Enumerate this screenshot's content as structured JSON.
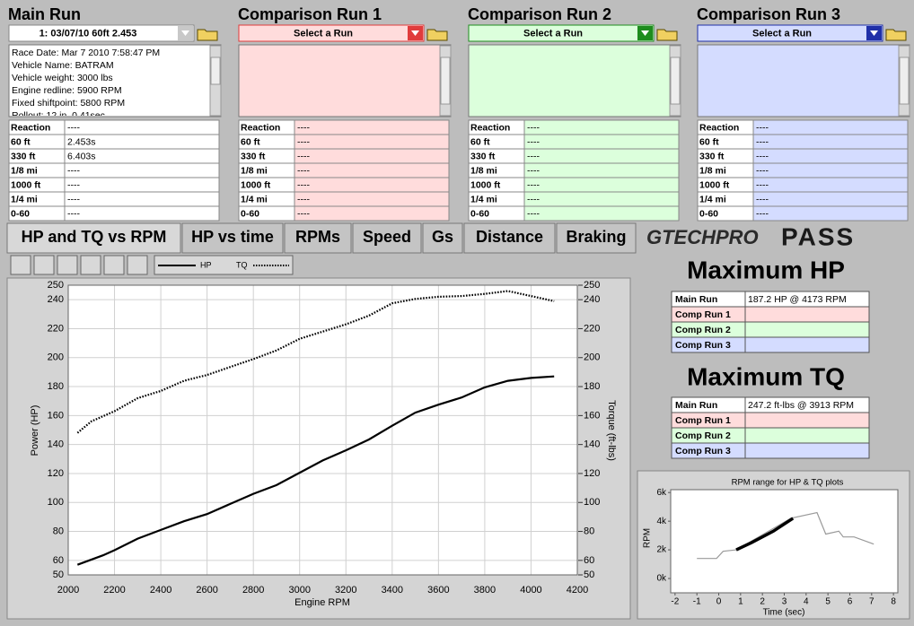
{
  "runs": [
    {
      "title": "Main Run",
      "selector": "1:  03/07/10 60ft 2.453",
      "info": [
        "Race Date: Mar 7 2010  7:58:47 PM",
        "Vehicle Name: BATRAM",
        "Vehicle weight: 3000 lbs",
        "Engine redline: 5900 RPM",
        "Fixed shiftpoint: 5800 RPM",
        "Rollout: 12 in. 0.41sec"
      ],
      "splits": [
        {
          "label": "Reaction",
          "value": "----"
        },
        {
          "label": "60 ft",
          "value": "2.453s"
        },
        {
          "label": "330 ft",
          "value": "6.403s"
        },
        {
          "label": "1/8 mi",
          "value": "----"
        },
        {
          "label": "1000 ft",
          "value": "----"
        },
        {
          "label": "1/4 mi",
          "value": "----"
        },
        {
          "label": "0-60",
          "value": "----"
        }
      ]
    },
    {
      "title": "Comparison Run 1",
      "selector": "Select a Run",
      "splits": [
        {
          "label": "Reaction",
          "value": "----"
        },
        {
          "label": "60 ft",
          "value": "----"
        },
        {
          "label": "330 ft",
          "value": "----"
        },
        {
          "label": "1/8 mi",
          "value": "----"
        },
        {
          "label": "1000 ft",
          "value": "----"
        },
        {
          "label": "1/4 mi",
          "value": "----"
        },
        {
          "label": "0-60",
          "value": "----"
        }
      ]
    },
    {
      "title": "Comparison Run 2",
      "selector": "Select a Run",
      "splits": [
        {
          "label": "Reaction",
          "value": "----"
        },
        {
          "label": "60 ft",
          "value": "----"
        },
        {
          "label": "330 ft",
          "value": "----"
        },
        {
          "label": "1/8 mi",
          "value": "----"
        },
        {
          "label": "1000 ft",
          "value": "----"
        },
        {
          "label": "1/4 mi",
          "value": "----"
        },
        {
          "label": "0-60",
          "value": "----"
        }
      ]
    },
    {
      "title": "Comparison Run 3",
      "selector": "Select a Run",
      "splits": [
        {
          "label": "Reaction",
          "value": "----"
        },
        {
          "label": "60 ft",
          "value": "----"
        },
        {
          "label": "330 ft",
          "value": "----"
        },
        {
          "label": "1/8 mi",
          "value": "----"
        },
        {
          "label": "1000 ft",
          "value": "----"
        },
        {
          "label": "1/4 mi",
          "value": "----"
        },
        {
          "label": "0-60",
          "value": "----"
        }
      ]
    }
  ],
  "tabs": [
    "HP and TQ vs RPM",
    "HP vs time",
    "RPMs",
    "Speed",
    "Gs",
    "Distance",
    "Braking"
  ],
  "logo": {
    "brand": "GTECHPRO",
    "product": "PASS"
  },
  "hp_tq_chart": {
    "type": "line",
    "x_label": "Engine RPM",
    "y_label": "Power (HP)",
    "y2_label": "Torque (ft-lbs)",
    "xlim": [
      2000,
      4200
    ],
    "xticks": [
      2000,
      2200,
      2400,
      2600,
      2800,
      3000,
      3200,
      3400,
      3600,
      3800,
      4000,
      4200
    ],
    "ylim": [
      50,
      250
    ],
    "yticks": [
      50,
      60,
      80,
      100,
      120,
      140,
      160,
      180,
      200,
      220,
      240,
      250
    ],
    "y2lim": [
      50,
      250
    ],
    "y2ticks": [
      50,
      60,
      80,
      100,
      120,
      140,
      160,
      180,
      200,
      220,
      240,
      250
    ],
    "grid": true,
    "series": [
      {
        "name": "HP",
        "color": "#000000",
        "x": [
          2040,
          2150,
          2200,
          2300,
          2400,
          2500,
          2600,
          2700,
          2800,
          2900,
          3000,
          3100,
          3200,
          3300,
          3400,
          3500,
          3600,
          3700,
          3800,
          3900,
          4000,
          4100
        ],
        "values": [
          57,
          63.5,
          67,
          75,
          81,
          87,
          92,
          99,
          106,
          112,
          120.5,
          129,
          136,
          143.5,
          153,
          162,
          167.5,
          172.5,
          179.5,
          184,
          186,
          187
        ]
      },
      {
        "name": "TQ",
        "color": "#000000",
        "axis": "y2",
        "dashed": true,
        "x": [
          2040,
          2100,
          2200,
          2300,
          2400,
          2500,
          2600,
          2700,
          2800,
          2900,
          3000,
          3100,
          3200,
          3300,
          3400,
          3500,
          3600,
          3700,
          3800,
          3900,
          4000,
          4100
        ],
        "values": [
          148,
          156,
          163,
          172,
          177,
          184,
          188,
          193.5,
          199,
          205,
          213,
          218,
          223,
          229,
          237.5,
          240.5,
          242,
          242.5,
          244,
          246,
          242.5,
          239
        ]
      }
    ]
  },
  "max_hp": {
    "title": "Maximum HP",
    "rows": [
      {
        "label": "Main Run",
        "value": "187.2 HP @ 4173 RPM"
      },
      {
        "label": "Comp Run 1"
      },
      {
        "label": "Comp Run 2"
      },
      {
        "label": "Comp Run 3"
      }
    ]
  },
  "max_tq": {
    "title": "Maximum TQ",
    "rows": [
      {
        "label": "Main Run",
        "value": "247.2 ft-lbs @ 3913 RPM"
      },
      {
        "label": "Comp Run 1"
      },
      {
        "label": "Comp Run 2"
      },
      {
        "label": "Comp Run 3"
      }
    ]
  },
  "rpm_chart": {
    "type": "line",
    "title": "RPM range for HP & TQ plots",
    "x_label": "Time (sec)",
    "y_label": "RPM",
    "xlim": [
      -2.2,
      8.2
    ],
    "xticks": [
      -2,
      -1,
      0,
      1,
      2,
      3,
      4,
      5,
      6,
      7,
      8
    ],
    "ylim": [
      -1000,
      6200
    ],
    "yticks": [
      {
        "value": 0,
        "label": "0k"
      },
      {
        "value": 2000,
        "label": "2k"
      },
      {
        "value": 4000,
        "label": "4k"
      },
      {
        "value": 6000,
        "label": "6k"
      }
    ],
    "series": [
      {
        "color": "#9a9a9a",
        "width": 1.2,
        "x": [
          -1,
          -0.1,
          0.2,
          0.8,
          3.3,
          4.5,
          4.9,
          5.5,
          5.7,
          6.2,
          7.1
        ],
        "values": [
          1400,
          1400,
          1900,
          2000,
          4200,
          4600,
          3100,
          3300,
          2900,
          2900,
          2400
        ]
      },
      {
        "color": "#000000",
        "width": 3.5,
        "x": [
          0.8,
          1.5,
          2.5,
          3.4
        ],
        "values": [
          2000,
          2500,
          3300,
          4200
        ]
      }
    ]
  }
}
